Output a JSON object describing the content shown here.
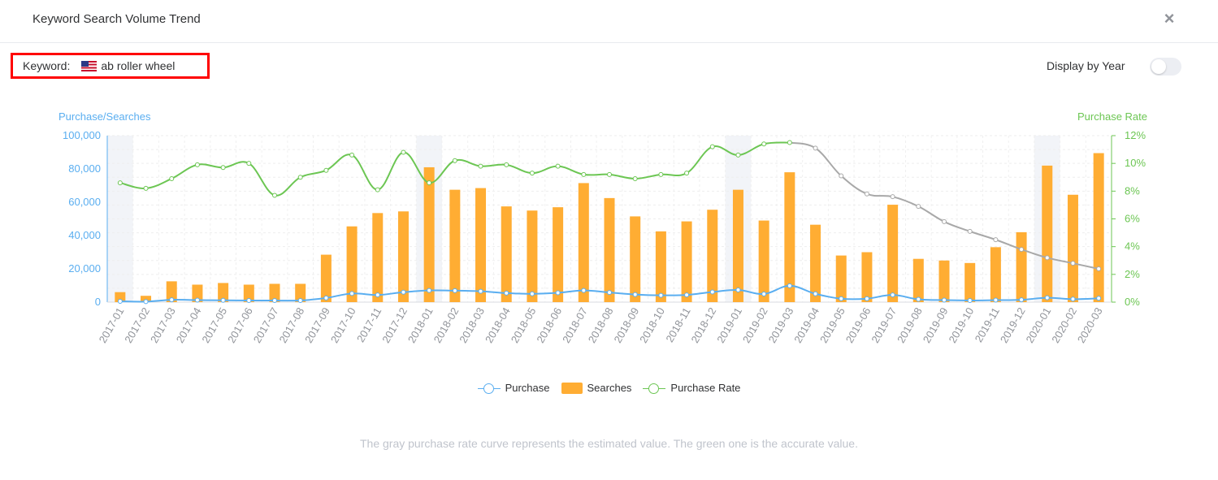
{
  "header": {
    "title": "Keyword Search Volume Trend",
    "close_label": "×"
  },
  "keyword": {
    "label": "Keyword:",
    "value": "ab roller wheel"
  },
  "display_by_year": {
    "label": "Display by Year",
    "enabled": false
  },
  "note": "The gray purchase rate curve represents the estimated value. The green one is the accurate value.",
  "colors": {
    "searches": "#ffad33",
    "purchase": "#5aaef0",
    "rate_accurate": "#6cc653",
    "rate_estimated": "#a8a8a8",
    "highlight": "#f2f4f8"
  },
  "chart_data": {
    "type": "bar",
    "categories": [
      "2017-01",
      "2017-02",
      "2017-03",
      "2017-04",
      "2017-05",
      "2017-06",
      "2017-07",
      "2017-08",
      "2017-09",
      "2017-10",
      "2017-11",
      "2017-12",
      "2018-01",
      "2018-02",
      "2018-03",
      "2018-04",
      "2018-05",
      "2018-06",
      "2018-07",
      "2018-08",
      "2018-09",
      "2018-10",
      "2018-11",
      "2018-12",
      "2019-01",
      "2019-02",
      "2019-03",
      "2019-04",
      "2019-05",
      "2019-06",
      "2019-07",
      "2019-08",
      "2019-09",
      "2019-10",
      "2019-11",
      "2019-12",
      "2020-01",
      "2020-02",
      "2020-03"
    ],
    "highlighted_categories": [
      "2017-01",
      "2018-01",
      "2019-01",
      "2020-01"
    ],
    "y_left": {
      "label": "Purchase/Searches",
      "range": [
        0,
        100000
      ],
      "ticks": [
        "0",
        "20,000",
        "40,000",
        "60,000",
        "80,000",
        "100,000"
      ]
    },
    "y_right": {
      "label": "Purchase Rate",
      "range": [
        0,
        12
      ],
      "ticks": [
        "0%",
        "2%",
        "4%",
        "6%",
        "8%",
        "10%",
        "12%"
      ]
    },
    "grid": true,
    "legend": {
      "position": "bottom-center",
      "items": [
        "Purchase",
        "Searches",
        "Purchase Rate"
      ]
    },
    "series": [
      {
        "name": "Searches",
        "kind": "bar",
        "axis": "left",
        "values": [
          6000,
          3800,
          12500,
          10500,
          11500,
          10500,
          11000,
          11000,
          28500,
          45500,
          53500,
          54500,
          81000,
          67500,
          68500,
          57500,
          55000,
          57000,
          71500,
          62500,
          51500,
          42500,
          48500,
          55500,
          67500,
          49000,
          78000,
          46500,
          28000,
          30000,
          58500,
          26000,
          25000,
          23500,
          33000,
          42000,
          82000,
          64500,
          89500
        ]
      },
      {
        "name": "Purchase",
        "kind": "line",
        "axis": "left",
        "values": [
          500,
          300,
          1400,
          1200,
          1100,
          1000,
          1000,
          1000,
          2500,
          5200,
          4300,
          6000,
          7000,
          6900,
          6500,
          5400,
          5000,
          5600,
          7000,
          5800,
          4600,
          4100,
          4300,
          6100,
          7300,
          4900,
          9800,
          5000,
          2100,
          2100,
          4300,
          1700,
          1200,
          1000,
          1200,
          1400,
          2600,
          1800,
          2300
        ]
      },
      {
        "name": "Purchase Rate",
        "kind": "line",
        "axis": "right",
        "values": [
          8.6,
          8.2,
          8.9,
          9.9,
          9.7,
          10.0,
          7.7,
          9.0,
          9.5,
          10.6,
          8.1,
          10.8,
          8.6,
          10.2,
          9.8,
          9.9,
          9.3,
          9.8,
          9.2,
          9.2,
          8.9,
          9.2,
          9.3,
          11.2,
          10.6,
          11.4,
          11.5,
          11.1,
          9.1,
          7.8,
          7.6,
          6.9,
          5.8,
          5.1,
          4.5,
          3.8,
          3.2,
          2.8,
          2.4
        ],
        "accurate_through": "2019-03"
      }
    ]
  }
}
